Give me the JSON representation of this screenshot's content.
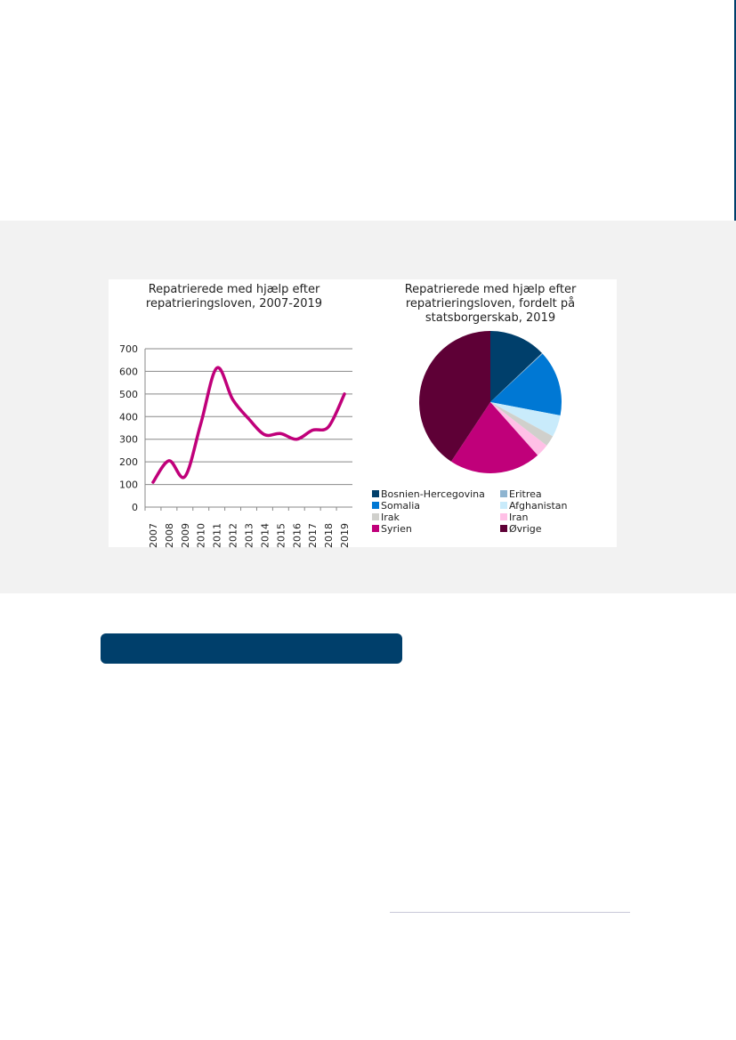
{
  "chart_data": [
    {
      "type": "line",
      "title": "Repatrierede med hjælp efter repatrieringsloven, 2007-2019",
      "title_lines": [
        "Repatrierede med hjælp efter",
        "repatrieringsloven, 2007-2019"
      ],
      "categories": [
        "2007",
        "2008",
        "2009",
        "2010",
        "2011",
        "2012",
        "2013",
        "2014",
        "2015",
        "2016",
        "2017",
        "2018",
        "2019"
      ],
      "values": [
        110,
        205,
        135,
        370,
        615,
        475,
        390,
        320,
        325,
        300,
        340,
        355,
        500
      ],
      "ylim": [
        0,
        700
      ],
      "yticks": [
        "0",
        "100",
        "200",
        "300",
        "400",
        "500",
        "600",
        "700"
      ],
      "grid": true,
      "color": "#c0007a",
      "smooth": true
    },
    {
      "type": "pie",
      "title": "Repatrierede med hjælp efter repatrieringsloven, fordelt på statsborgerskab, 2019",
      "title_lines": [
        "Repatrierede med hjælp efter",
        "repatrieringsloven, fordelt på",
        "statsborgerskab, 2019"
      ],
      "legend": "bottom",
      "slices": [
        {
          "name": "Bosnien-Hercegovina",
          "value": 13,
          "color": "#003f6b"
        },
        {
          "name": "Eritrea",
          "value": 0.2,
          "color": "#8eb4d0"
        },
        {
          "name": "Somalia",
          "value": 15,
          "color": "#0078d4"
        },
        {
          "name": "Afghanistan",
          "value": 5,
          "color": "#c9ebfb"
        },
        {
          "name": "Irak",
          "value": 2.5,
          "color": "#d0d0cc"
        },
        {
          "name": "Iran",
          "value": 3,
          "color": "#ffc0e6"
        },
        {
          "name": "Syrien",
          "value": 21,
          "color": "#c0007a"
        },
        {
          "name": "Øvrige",
          "value": 41,
          "color": "#5e0036"
        }
      ]
    }
  ]
}
